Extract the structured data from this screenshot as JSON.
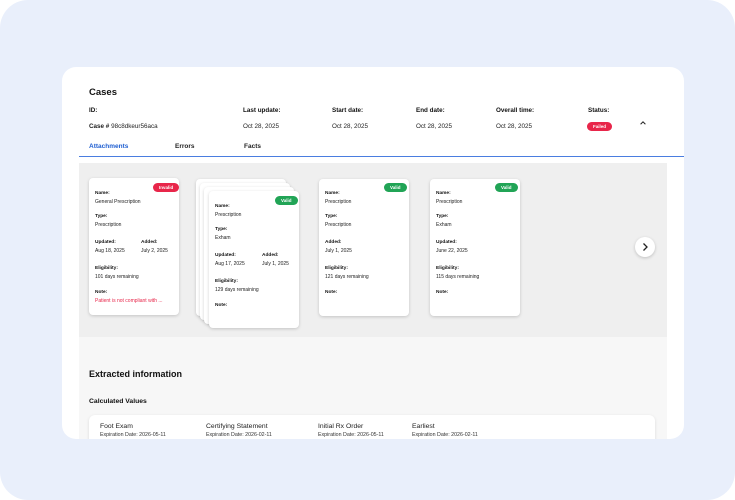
{
  "title": "Cases",
  "headers": [
    "ID:",
    "Last update:",
    "Start date:",
    "End date:",
    "Overall time:",
    "Status:"
  ],
  "case": {
    "id_prefix": "Case #",
    "id_value": "98c8dkeur56aca",
    "last_update": "Oct 28, 2025",
    "start_date": "Oct 28, 2025",
    "end_date": "Oct 28, 2025",
    "overall_time": "Oct 28, 2025",
    "status": "Failed"
  },
  "tabs": [
    "Attachments",
    "Errors",
    "Facts"
  ],
  "cards": [
    {
      "badge": "Invalid",
      "name_label": "Name:",
      "name": "General Prescription",
      "type_label": "Type:",
      "type": "Prescription",
      "updated_label": "Updated:",
      "updated": "Aug 18, 2025",
      "added_label": "Added:",
      "added": "July 2, 2025",
      "elig_label": "Eligibility:",
      "elig": "101 days remaining",
      "note_label": "Note:",
      "note": "Patient is not compliant with ..."
    },
    {
      "badge": "Valid",
      "name_label": "Name:",
      "name": "Prescription",
      "type_label": "Type:",
      "type": "Exham",
      "updated_label": "Updated:",
      "updated": "Aug 17, 2025",
      "added_label": "Added:",
      "added": "July 1, 2025",
      "elig_label": "Eligibility:",
      "elig": "129 days remaining",
      "note_label": "Note:",
      "note": ""
    },
    {
      "badge": "Valid",
      "name_label": "Name:",
      "name": "Prescription",
      "type_label": "Type:",
      "type": "Prescription",
      "added_label": "Added:",
      "added": "July 1, 2025",
      "elig_label": "Eligibility:",
      "elig": "121 days remaining",
      "note_label": "Note:",
      "note": ""
    },
    {
      "badge": "Valid",
      "name_label": "Name:",
      "name": "Prescription",
      "type_label": "Type:",
      "type": "Exham",
      "updated_label": "Updated:",
      "updated": "June 22, 2025",
      "elig_label": "Eligibility:",
      "elig": "115 days remaining",
      "note_label": "Note:",
      "note": ""
    }
  ],
  "extracted_title": "Extracted information",
  "calculated_title": "Calculated Values",
  "calculated": [
    {
      "title": "Foot Exam",
      "date": "Expiration Date: 2026-05-11"
    },
    {
      "title": "Certifying Statement",
      "date": "Expiration Date: 2026-02-11"
    },
    {
      "title": "Initial Rx Order",
      "date": "Expiration Date: 2026-05-11"
    },
    {
      "title": "Earliest",
      "date": "Expiration Date: 2026-02-11"
    }
  ],
  "colors": {
    "accent": "#1f5fd1",
    "invalid": "#e8264a",
    "valid": "#21a456",
    "background": "#e9effb"
  },
  "icons": {
    "collapse": "chevron-up-icon",
    "next": "chevron-right-icon"
  }
}
